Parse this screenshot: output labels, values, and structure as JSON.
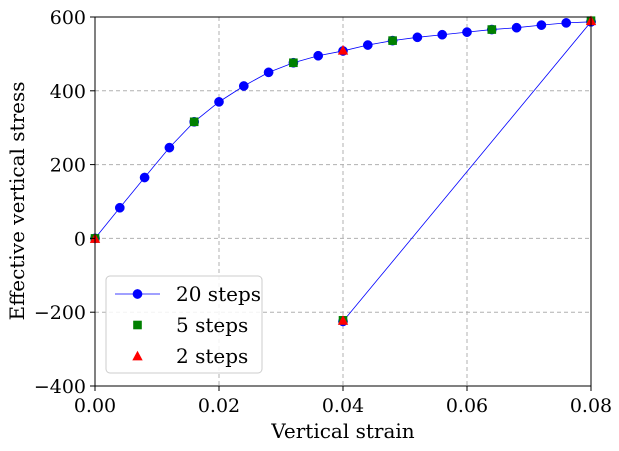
{
  "chart_data": {
    "type": "line",
    "title": "",
    "xlabel": "Vertical strain",
    "ylabel": "Effective vertical stress",
    "xlim": [
      0.0,
      0.08
    ],
    "ylim": [
      -400,
      600
    ],
    "xticks": [
      0.0,
      0.02,
      0.04,
      0.06,
      0.08
    ],
    "yticks": [
      -400,
      -200,
      0,
      200,
      400,
      600
    ],
    "xtick_labels": [
      "0.00",
      "0.02",
      "0.04",
      "0.06",
      "0.08"
    ],
    "ytick_labels": [
      "−400",
      "−200",
      "0",
      "200",
      "400",
      "600"
    ],
    "grid": true,
    "legend_position": "lower-left",
    "series": [
      {
        "name": "20 steps",
        "color": "#0000ff",
        "marker": "circle",
        "line": true,
        "x": [
          0.0,
          0.004,
          0.008,
          0.012,
          0.016,
          0.02,
          0.024,
          0.028,
          0.032,
          0.036,
          0.04,
          0.044,
          0.048,
          0.052,
          0.056,
          0.06,
          0.064,
          0.068,
          0.072,
          0.076,
          0.08,
          0.04,
          0.08
        ],
        "y": [
          0,
          83,
          165,
          246,
          316,
          370,
          413,
          450,
          476,
          495,
          508,
          524,
          536,
          545,
          552,
          559,
          566,
          571,
          578,
          584,
          587,
          -225,
          587
        ]
      },
      {
        "name": "5 steps",
        "color": "#008000",
        "marker": "square",
        "line": false,
        "x": [
          0.0,
          0.016,
          0.032,
          0.048,
          0.064,
          0.08,
          0.04
        ],
        "y": [
          0,
          316,
          476,
          536,
          566,
          590,
          -222
        ]
      },
      {
        "name": "2 steps",
        "color": "#ff0000",
        "marker": "triangle",
        "line": false,
        "x": [
          0.0,
          0.04,
          0.08,
          0.04
        ],
        "y": [
          0,
          510,
          590,
          -222
        ]
      }
    ]
  }
}
